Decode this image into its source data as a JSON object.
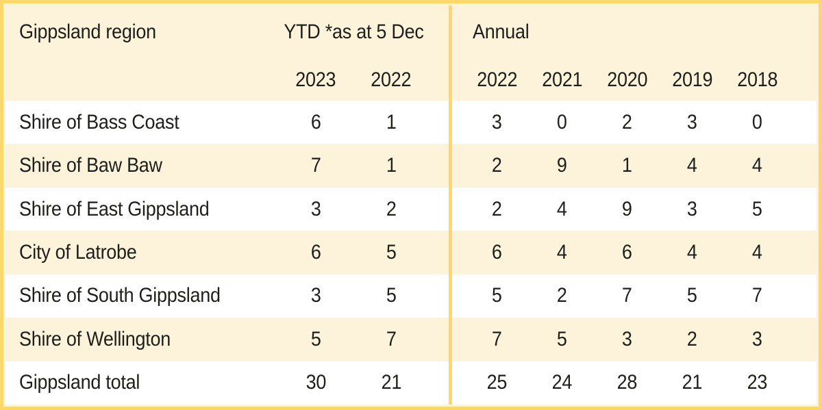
{
  "table": {
    "region_header": "Gippsland region",
    "ytd_header": "YTD *as at 5 Dec",
    "annual_header": "Annual",
    "ytd_years": [
      "2023",
      "2022"
    ],
    "annual_years": [
      "2022",
      "2021",
      "2020",
      "2019",
      "2018"
    ],
    "rows": [
      {
        "name": "Shire of Bass Coast",
        "ytd": [
          "6",
          "1"
        ],
        "annual": [
          "3",
          "0",
          "2",
          "3",
          "0"
        ]
      },
      {
        "name": "Shire of Baw Baw",
        "ytd": [
          "7",
          "1"
        ],
        "annual": [
          "2",
          "9",
          "1",
          "4",
          "4"
        ]
      },
      {
        "name": "Shire of East Gippsland",
        "ytd": [
          "3",
          "2"
        ],
        "annual": [
          "2",
          "4",
          "9",
          "3",
          "5"
        ]
      },
      {
        "name": "City of Latrobe",
        "ytd": [
          "6",
          "5"
        ],
        "annual": [
          "6",
          "4",
          "6",
          "4",
          "4"
        ]
      },
      {
        "name": "Shire of South Gippsland",
        "ytd": [
          "3",
          "5"
        ],
        "annual": [
          "5",
          "2",
          "7",
          "5",
          "7"
        ]
      },
      {
        "name": "Shire of Wellington",
        "ytd": [
          "5",
          "7"
        ],
        "annual": [
          "7",
          "5",
          "3",
          "2",
          "3"
        ]
      },
      {
        "name": "Gippsland total",
        "ytd": [
          "30",
          "21"
        ],
        "annual": [
          "25",
          "24",
          "28",
          "21",
          "23"
        ]
      }
    ],
    "colors": {
      "border_yellow": "#FBD869",
      "cream": "#FDF3DA",
      "white": "#FFFFFF",
      "text": "#1E1E1C"
    }
  },
  "chart_data": {
    "type": "table",
    "title": "Gippsland region",
    "column_groups": [
      "YTD *as at 5 Dec",
      "Annual"
    ],
    "columns": [
      "Gippsland region",
      "YTD 2023",
      "YTD 2022",
      "Annual 2022",
      "Annual 2021",
      "Annual 2020",
      "Annual 2019",
      "Annual 2018"
    ],
    "rows": [
      [
        "Shire of Bass Coast",
        6,
        1,
        3,
        0,
        2,
        3,
        0
      ],
      [
        "Shire of Baw Baw",
        7,
        1,
        2,
        9,
        1,
        4,
        4
      ],
      [
        "Shire of East Gippsland",
        3,
        2,
        2,
        4,
        9,
        3,
        5
      ],
      [
        "City of Latrobe",
        6,
        5,
        6,
        4,
        6,
        4,
        4
      ],
      [
        "Shire of South Gippsland",
        3,
        5,
        5,
        2,
        7,
        5,
        7
      ],
      [
        "Shire of Wellington",
        5,
        7,
        7,
        5,
        3,
        2,
        3
      ],
      [
        "Gippsland total",
        30,
        21,
        25,
        24,
        28,
        21,
        23
      ]
    ]
  }
}
